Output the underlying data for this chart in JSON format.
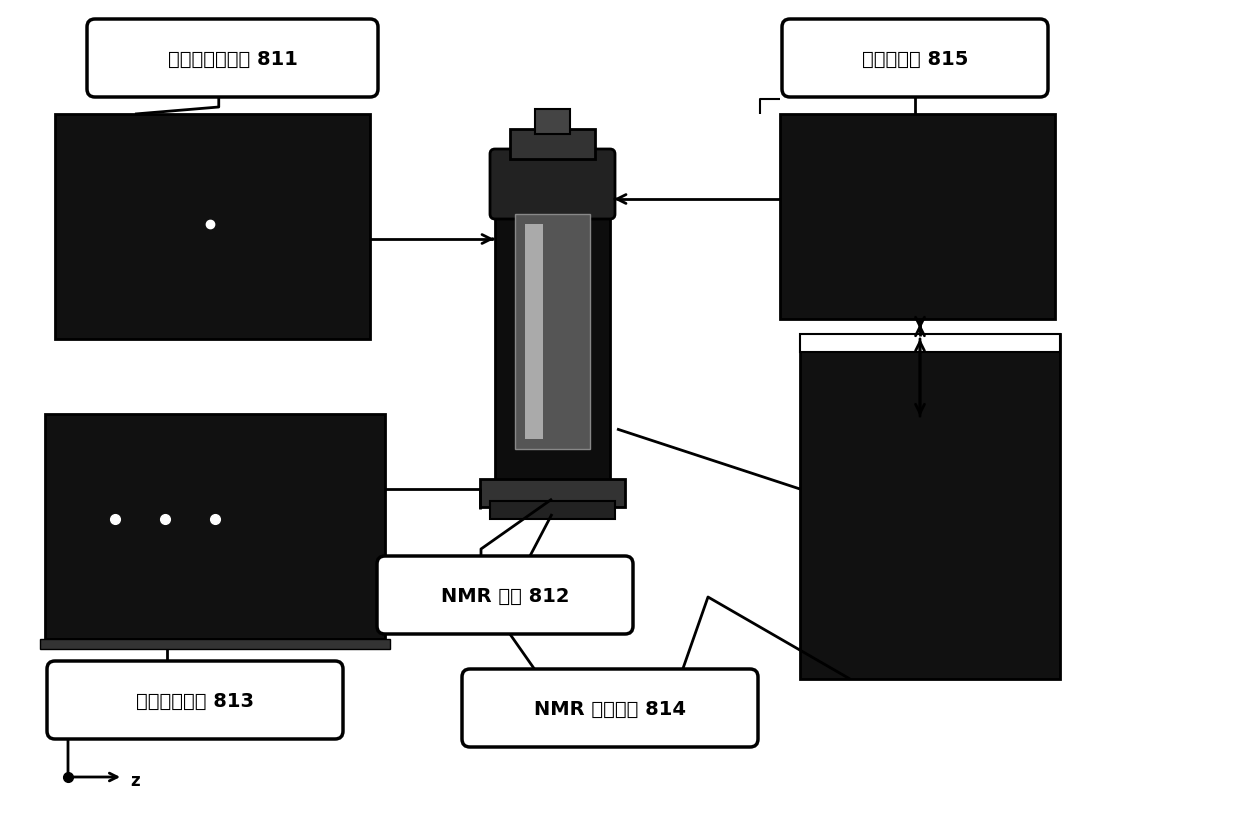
{
  "bg_color": "#ffffff",
  "label_811": "反应气控制系统 811",
  "label_812": "NMR 谱仪 812",
  "label_813": "超极化发生器 813",
  "label_814": "NMR 控制系统 814",
  "label_815": "四极质谱仪 815",
  "coord_label": "z",
  "font_size": 14,
  "line_width": 2.0
}
